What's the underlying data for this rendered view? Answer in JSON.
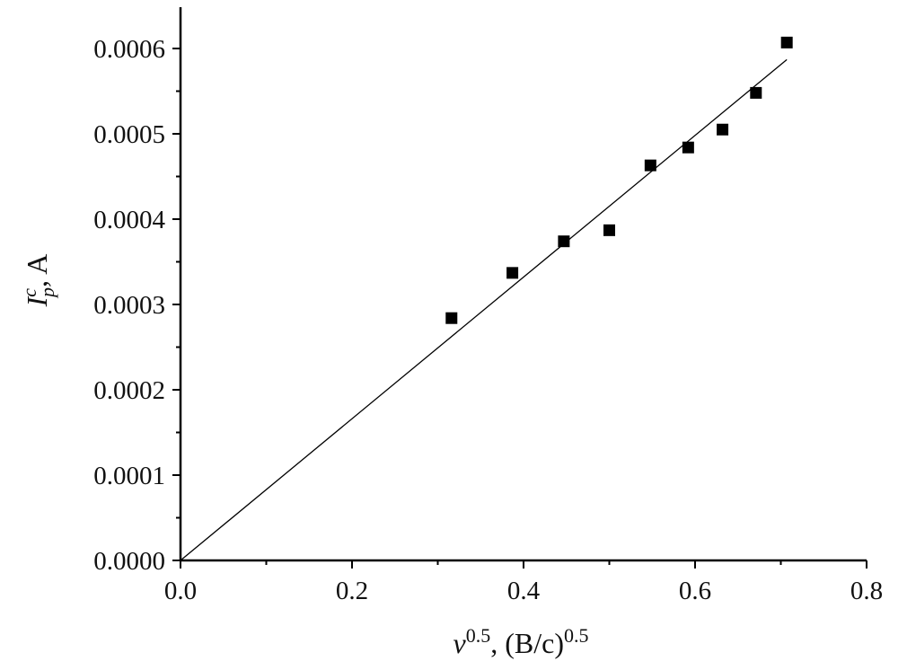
{
  "chart_data": {
    "type": "scatter",
    "title": "",
    "xlabel": {
      "symbol": "v",
      "exp": "0.5",
      "text": ", (B/c)",
      "exp2": "0.5"
    },
    "ylabel": {
      "symbol": "I",
      "sup": "c",
      "sub": "p",
      "text": ", A"
    },
    "xlim": [
      0.0,
      0.8
    ],
    "ylim": [
      0.0,
      0.00065
    ],
    "xticks": [
      "0.0",
      "0.2",
      "0.4",
      "0.6",
      "0.8"
    ],
    "xtick_values": [
      0.0,
      0.2,
      0.4,
      0.6,
      0.8
    ],
    "xminor_values": [
      0.1,
      0.3,
      0.5,
      0.7
    ],
    "yticks": [
      "0.0000",
      "0.0001",
      "0.0002",
      "0.0003",
      "0.0004",
      "0.0005",
      "0.0006"
    ],
    "ytick_values": [
      0.0,
      0.0001,
      0.0002,
      0.0003,
      0.0004,
      0.0005,
      0.0006
    ],
    "yminor_values": [
      5e-05,
      0.00015,
      0.00025,
      0.00035,
      0.00045,
      0.00055
    ],
    "grid": false,
    "series": [
      {
        "marker": "square",
        "color": "#000000",
        "x": [
          0.316,
          0.387,
          0.447,
          0.5,
          0.548,
          0.592,
          0.632,
          0.671,
          0.707
        ],
        "y": [
          0.000284,
          0.000337,
          0.000374,
          0.000387,
          0.000463,
          0.000484,
          0.000505,
          0.000548,
          0.000607
        ]
      }
    ],
    "fit_line": {
      "x": [
        0.0,
        0.707
      ],
      "y": [
        0.0,
        0.000587
      ],
      "color": "#000000"
    }
  }
}
